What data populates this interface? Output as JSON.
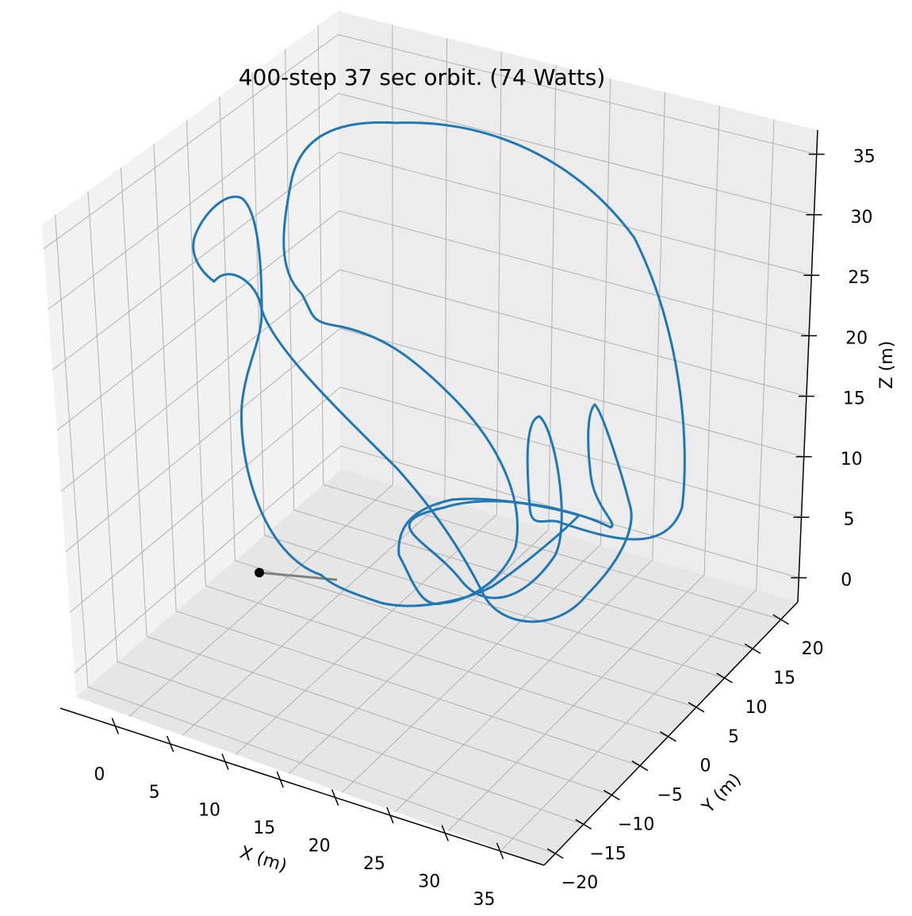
{
  "chart_data": {
    "type": "line3d",
    "title": "400-step 37 sec orbit. (74 Watts)",
    "xlabel": "X (m)",
    "ylabel": "Y (m)",
    "zlabel": "Z (m)",
    "xlim": [
      -5,
      39
    ],
    "ylim": [
      -22,
      23
    ],
    "zlim": [
      -2,
      37
    ],
    "x_ticks": [
      "0",
      "5",
      "10",
      "15",
      "20",
      "25",
      "30",
      "35"
    ],
    "y_ticks": [
      "−20",
      "−15",
      "−10",
      "−5",
      "0",
      "5",
      "10",
      "15",
      "20"
    ],
    "z_ticks": [
      "0",
      "5",
      "10",
      "15",
      "20",
      "25",
      "30",
      "35"
    ],
    "grid": true,
    "colors": {
      "trajectory": "#1f77b4",
      "lead_segment": "#808080",
      "start_marker": "#000000",
      "pane_light": "#f2f2f2",
      "pane_dark": "#e6e6e6",
      "grid": "#b0b0b0"
    },
    "series": [
      {
        "type": "point",
        "description": "start marker"
      },
      {
        "type": "line3d"
      }
    ]
  }
}
